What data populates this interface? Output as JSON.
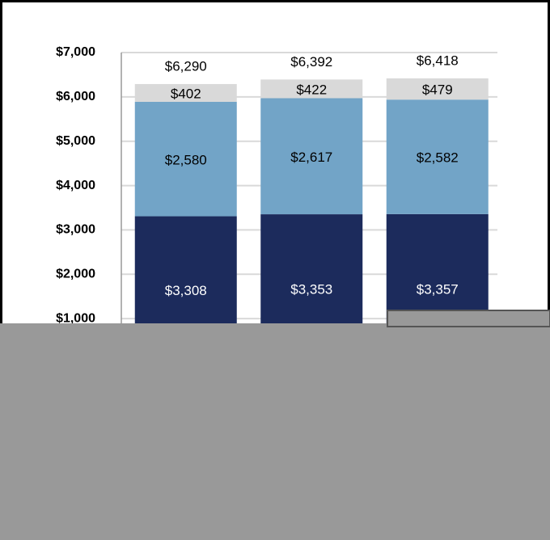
{
  "chart_data": {
    "type": "stacked_bar",
    "categories": [
      null,
      null,
      null
    ],
    "series": [
      {
        "color": "#1c2b5c",
        "values": [
          3308,
          3353,
          3357
        ],
        "value_labels": [
          "$3,308",
          "$3,353",
          "$3,357"
        ]
      },
      {
        "color": "#72a4c7",
        "values": [
          2580,
          2617,
          2582
        ],
        "value_labels": [
          "$2,580",
          "$2,617",
          "$2,582"
        ]
      },
      {
        "color": "#d9d9d9",
        "values": [
          402,
          422,
          479
        ],
        "value_labels": [
          "$402",
          "$422",
          "$479"
        ]
      }
    ],
    "totals": {
      "values": [
        6290,
        6392,
        6418
      ],
      "value_labels": [
        "$6,290",
        "$6,392",
        "$6,418"
      ]
    },
    "ylim": [
      0,
      7000
    ],
    "yticks": [
      {
        "value": 1000,
        "label": "$1,000"
      },
      {
        "value": 2000,
        "label": "$2,000"
      },
      {
        "value": 3000,
        "label": "$3,000"
      },
      {
        "value": 4000,
        "label": "$4,000"
      },
      {
        "value": 5000,
        "label": "$5,000"
      },
      {
        "value": 6000,
        "label": "$6,000"
      },
      {
        "value": 7000,
        "label": "$7,000"
      }
    ],
    "grid": true
  }
}
